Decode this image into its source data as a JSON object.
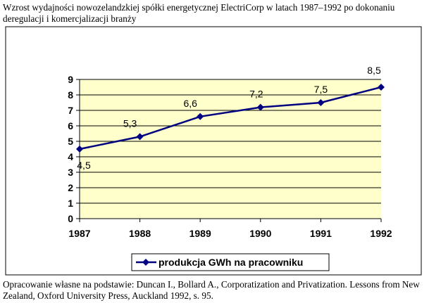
{
  "caption": "Wzrost wydajności nowozelandzkiej spółki energetycznej ElectriCorp w latach 1987–1992 po dokonaniu deregulacji i komercjalizacji branży",
  "source": "Opracowanie własne na podstawie: Duncan I., Bollard A., Corporatization and Privatization. Lessons from New Zealand, Oxford University Press, Auckland 1992, s. 95.",
  "chart_data": {
    "type": "line",
    "title": "",
    "xlabel": "",
    "ylabel": "",
    "categories": [
      "1987",
      "1988",
      "1989",
      "1990",
      "1991",
      "1992"
    ],
    "ylim": [
      0,
      9
    ],
    "yticks": [
      "0",
      "1",
      "2",
      "3",
      "4",
      "5",
      "6",
      "7",
      "8",
      "9"
    ],
    "grid": true,
    "legend": "bottom",
    "series": [
      {
        "name": "produkcja GWh na pracowniku",
        "values": [
          4.5,
          5.3,
          6.6,
          7.2,
          7.5,
          8.5
        ],
        "labels": [
          "4,5",
          "5,3",
          "6,6",
          "7,2",
          "7,5",
          "8,5"
        ],
        "color": "#000080"
      }
    ],
    "plot_background": "#ffffcc"
  }
}
